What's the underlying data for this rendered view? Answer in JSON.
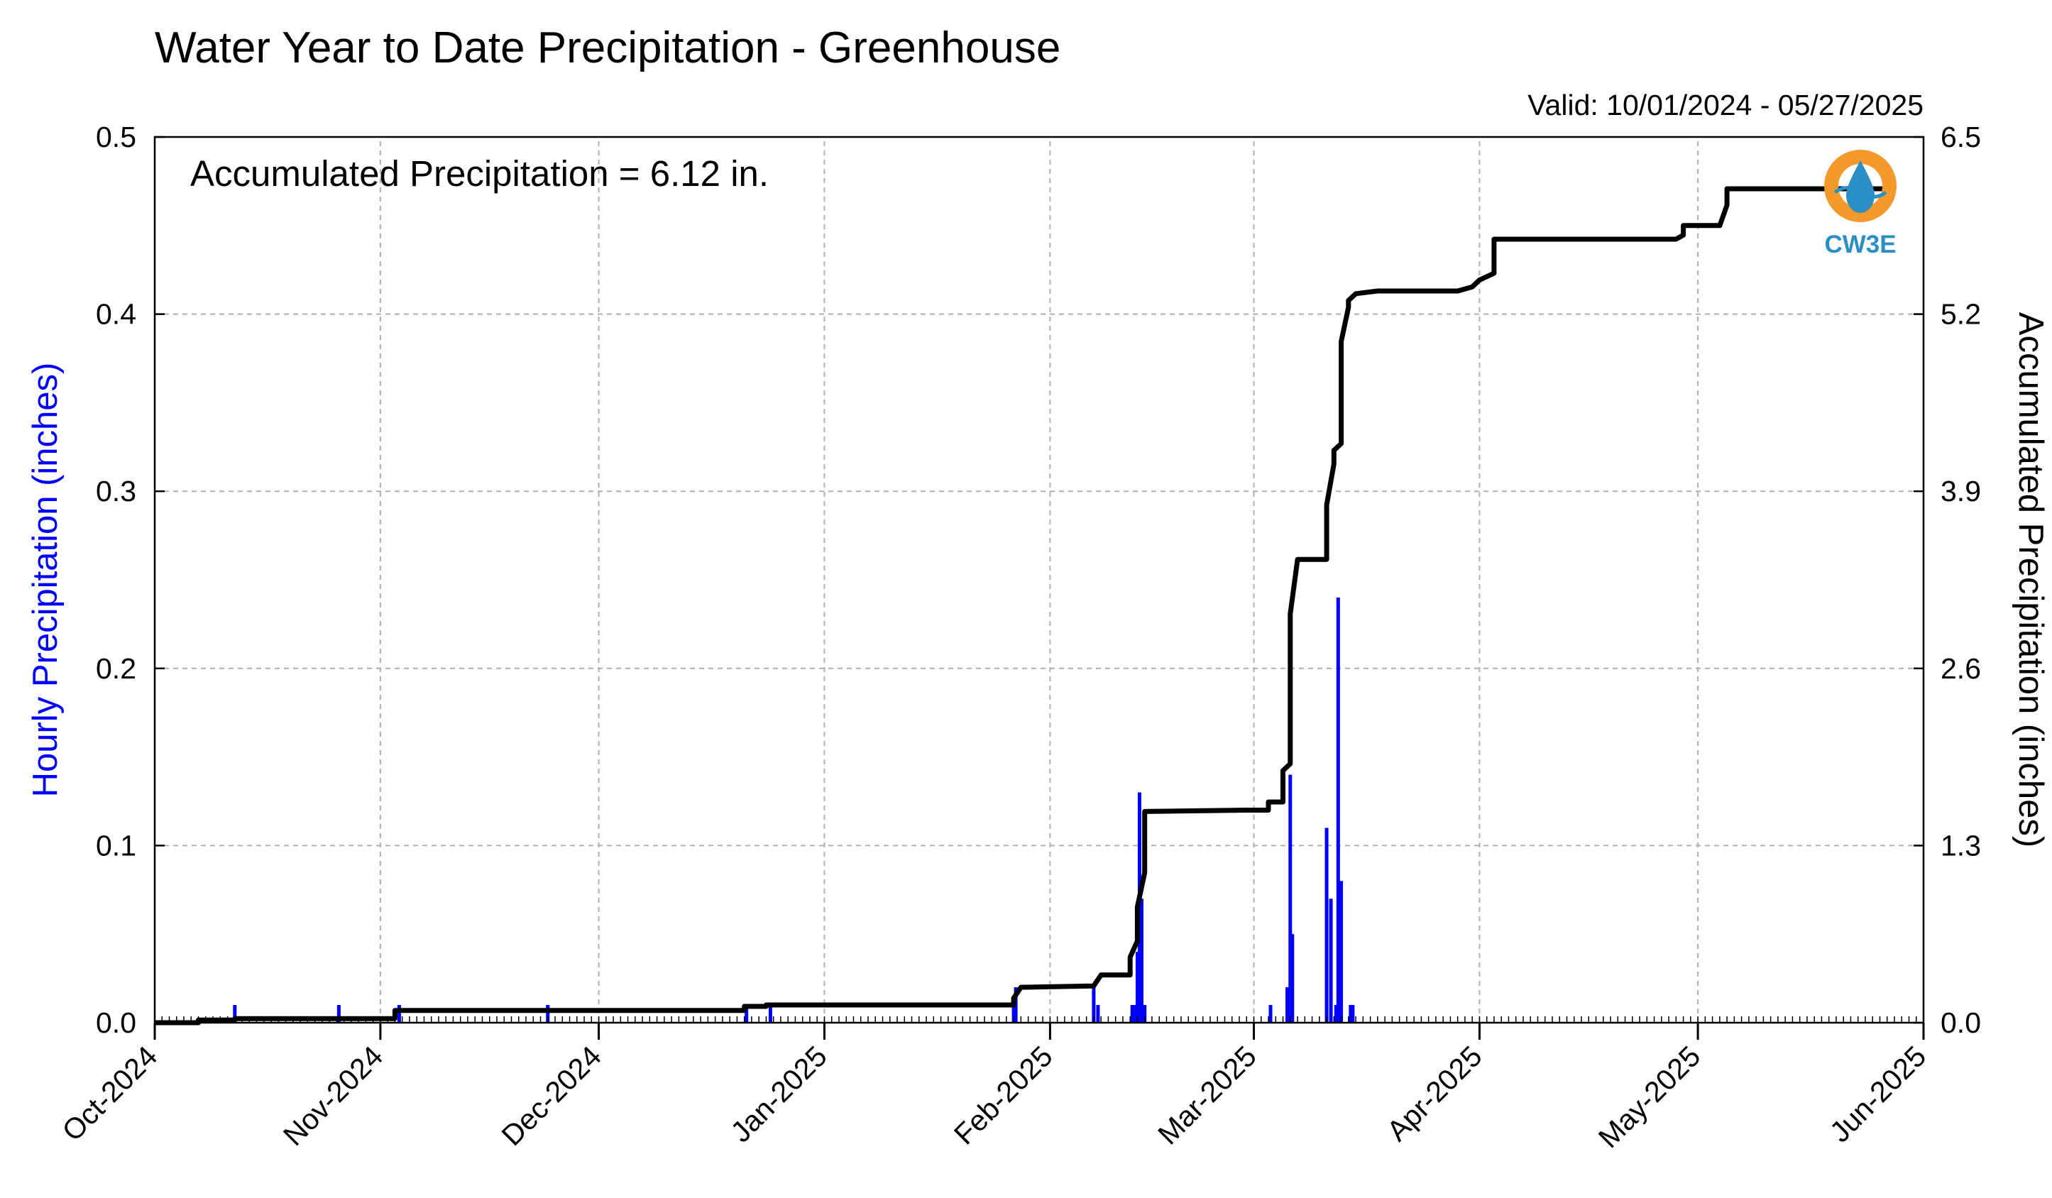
{
  "chart_data": {
    "type": "bar",
    "title": "Water Year to Date Precipitation - Greenhouse",
    "subtitle": "Valid: 10/01/2024 - 05/27/2025",
    "annotation": "Accumulated Precipitation = 6.12 in.",
    "logo_text": "CW3E",
    "ylabel_left": "Hourly Precipitation (inches)",
    "ylabel_right": "Accumulated Precipitation (inches)",
    "ylim_left": [
      0,
      0.5
    ],
    "ylim_right": [
      0,
      6.5
    ],
    "yticks_left": [
      "0.0",
      "0.1",
      "0.2",
      "0.3",
      "0.4",
      "0.5"
    ],
    "yticks_right": [
      "0.0",
      "1.3",
      "2.6",
      "3.9",
      "5.2",
      "6.5"
    ],
    "x_range": [
      "2024-10-01",
      "2025-06-01"
    ],
    "x_tick_labels": [
      "Oct-2024",
      "Nov-2024",
      "Dec-2024",
      "Jan-2025",
      "Feb-2025",
      "Mar-2025",
      "Apr-2025",
      "May-2025",
      "Jun-2025"
    ],
    "x_tick_dates": [
      "2024-10-01",
      "2024-11-01",
      "2024-12-01",
      "2025-01-01",
      "2025-02-01",
      "2025-03-01",
      "2025-04-01",
      "2025-05-01",
      "2025-06-01"
    ],
    "grid": true,
    "colors": {
      "hourly": "#0000ff",
      "accumulated": "#000000",
      "grid": "#b0b0b0",
      "logo_orange": "#f39a2b",
      "logo_blue": "#2a8fc4"
    },
    "series": [
      {
        "name": "Hourly Precipitation",
        "axis": "left",
        "type": "bar",
        "points": [
          [
            "2024-10-12",
            0.01
          ],
          [
            "2024-10-26",
            0.01
          ],
          [
            "2024-11-03",
            0.01
          ],
          [
            "2024-11-24",
            0.01
          ],
          [
            "2024-12-21",
            0.01
          ],
          [
            "2024-12-24",
            0.01
          ],
          [
            "2025-01-27",
            0.01
          ],
          [
            "2025-01-27",
            0.02
          ],
          [
            "2025-02-07",
            0.01
          ],
          [
            "2025-02-07",
            0.02
          ],
          [
            "2025-02-12",
            0.01
          ],
          [
            "2025-02-12",
            0.01
          ],
          [
            "2025-02-13",
            0.04
          ],
          [
            "2025-02-13",
            0.13
          ],
          [
            "2025-02-13",
            0.07
          ],
          [
            "2025-02-14",
            0.01
          ],
          [
            "2025-03-03",
            0.01
          ],
          [
            "2025-03-05",
            0.02
          ],
          [
            "2025-03-06",
            0.14
          ],
          [
            "2025-03-06",
            0.05
          ],
          [
            "2025-03-11",
            0.07
          ],
          [
            "2025-03-11",
            0.11
          ],
          [
            "2025-03-12",
            0.01
          ],
          [
            "2025-03-12",
            0.24
          ],
          [
            "2025-03-13",
            0.08
          ],
          [
            "2025-03-14",
            0.01
          ],
          [
            "2025-03-14",
            0.01
          ]
        ]
      },
      {
        "name": "Accumulated Precipitation",
        "axis": "right",
        "type": "line",
        "points": [
          [
            "2024-10-01",
            0.0
          ],
          [
            "2024-10-07",
            0.0
          ],
          [
            "2024-10-07",
            0.02
          ],
          [
            "2024-10-12",
            0.02
          ],
          [
            "2024-10-12",
            0.03
          ],
          [
            "2024-11-03",
            0.03
          ],
          [
            "2024-11-03",
            0.09
          ],
          [
            "2024-12-21",
            0.09
          ],
          [
            "2024-12-21",
            0.12
          ],
          [
            "2024-12-24",
            0.12
          ],
          [
            "2024-12-24",
            0.13
          ],
          [
            "2025-01-27",
            0.13
          ],
          [
            "2025-01-27",
            0.18
          ],
          [
            "2025-01-28",
            0.26
          ],
          [
            "2025-02-07",
            0.27
          ],
          [
            "2025-02-08",
            0.35
          ],
          [
            "2025-02-12",
            0.35
          ],
          [
            "2025-02-12",
            0.48
          ],
          [
            "2025-02-13",
            0.6
          ],
          [
            "2025-02-13",
            0.85
          ],
          [
            "2025-02-14",
            1.1
          ],
          [
            "2025-02-14",
            1.55
          ],
          [
            "2025-02-28",
            1.56
          ],
          [
            "2025-03-03",
            1.56
          ],
          [
            "2025-03-03",
            1.62
          ],
          [
            "2025-03-05",
            1.62
          ],
          [
            "2025-03-05",
            1.85
          ],
          [
            "2025-03-06",
            1.9
          ],
          [
            "2025-03-06",
            3.0
          ],
          [
            "2025-03-07",
            3.4
          ],
          [
            "2025-03-11",
            3.4
          ],
          [
            "2025-03-11",
            3.8
          ],
          [
            "2025-03-12",
            4.1
          ],
          [
            "2025-03-12",
            4.2
          ],
          [
            "2025-03-13",
            4.25
          ],
          [
            "2025-03-13",
            5.0
          ],
          [
            "2025-03-14",
            5.25
          ],
          [
            "2025-03-14",
            5.3
          ],
          [
            "2025-03-15",
            5.35
          ],
          [
            "2025-03-18",
            5.37
          ],
          [
            "2025-03-29",
            5.37
          ],
          [
            "2025-03-31",
            5.4
          ],
          [
            "2025-04-01",
            5.45
          ],
          [
            "2025-04-03",
            5.5
          ],
          [
            "2025-04-03",
            5.75
          ],
          [
            "2025-04-28",
            5.75
          ],
          [
            "2025-04-29",
            5.78
          ],
          [
            "2025-04-29",
            5.85
          ],
          [
            "2025-05-04",
            5.85
          ],
          [
            "2025-05-05",
            6.0
          ],
          [
            "2025-05-05",
            6.12
          ],
          [
            "2025-05-27",
            6.12
          ]
        ]
      }
    ]
  }
}
